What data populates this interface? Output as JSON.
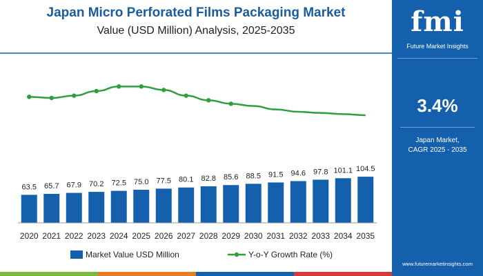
{
  "title": "Japan Micro Perforated Films Packaging Market",
  "subtitle": "Value (USD Million) Analysis, 2025-2035",
  "chart_data": {
    "type": "bar",
    "categories": [
      "2020",
      "2021",
      "2022",
      "2023",
      "2024",
      "2025",
      "2026",
      "2027",
      "2028",
      "2029",
      "2030",
      "2031",
      "2032",
      "2033",
      "2034",
      "2035"
    ],
    "series": [
      {
        "name": "Market Value USD Million",
        "type": "bar",
        "color": "#1560ad",
        "values": [
          63.5,
          65.7,
          67.9,
          70.2,
          72.5,
          75.0,
          77.5,
          80.1,
          82.8,
          85.6,
          88.5,
          91.5,
          94.6,
          97.8,
          101.1,
          104.5
        ],
        "labels": [
          "63.5",
          "65.7",
          "67.9",
          "70.2",
          "72.5",
          "75.0",
          "77.5",
          "80.1",
          "82.8",
          "85.6",
          "88.5",
          "91.5",
          "94.6",
          "97.8",
          "101.1",
          "104.5"
        ]
      },
      {
        "name": "Y-o-Y Growth Rate (%)",
        "type": "line",
        "color": "#2e9e3e",
        "values": [
          3.47,
          3.46,
          3.48,
          3.52,
          3.56,
          3.56,
          3.53,
          3.48,
          3.44,
          3.41,
          3.39,
          3.36,
          3.34,
          3.33,
          3.32,
          3.31
        ]
      }
    ],
    "ylim": [
      0,
      120
    ],
    "line_ylim": [
      2.8,
      3.7
    ],
    "grid": false,
    "legend_position": "bottom"
  },
  "legend": {
    "bar": "Market Value USD Million",
    "line": "Y-o-Y Growth Rate (%)"
  },
  "sidebar": {
    "logo": "fmi",
    "logo_subtitle": "Future Market Insights",
    "cagr_value": "3.4%",
    "cagr_label_line1": "Japan Market,",
    "cagr_label_line2": "CAGR 2025 - 2035",
    "website": "www.futuremarketinsights.com"
  },
  "colors": {
    "bar": "#1560ad",
    "line": "#2e9e3e",
    "title": "#1a5c9e",
    "sidebar": "#1560ad"
  },
  "footer_colors": [
    "#7db93e",
    "#e67d22",
    "#1560ad",
    "#d43a3a"
  ]
}
